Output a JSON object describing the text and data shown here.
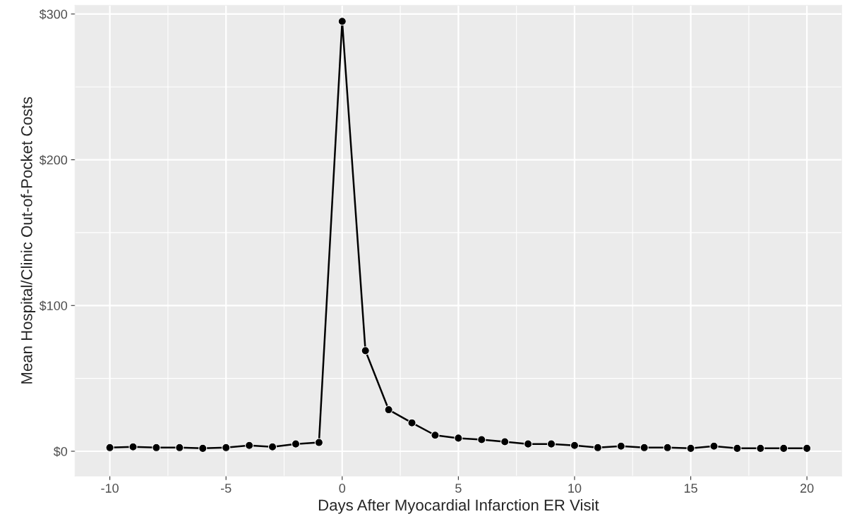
{
  "chart_data": {
    "type": "line",
    "xlabel": "Days After Myocardial Infarction ER Visit",
    "ylabel": "Mean Hospital/Clinic Out-of-Pocket Costs",
    "x": [
      -10,
      -9,
      -8,
      -7,
      -6,
      -5,
      -4,
      -3,
      -2,
      -1,
      0,
      1,
      2,
      3,
      4,
      5,
      6,
      7,
      8,
      9,
      10,
      11,
      12,
      13,
      14,
      15,
      16,
      17,
      18,
      19,
      20
    ],
    "series": [
      {
        "color": "#000000",
        "values": [
          2.5,
          3,
          2.5,
          2.5,
          2,
          2.5,
          4,
          3,
          5,
          6,
          295,
          69,
          28.5,
          19.5,
          11,
          9,
          8,
          6.5,
          5,
          5,
          4,
          2.5,
          3.5,
          2.5,
          2.5,
          2,
          3.5,
          2,
          2,
          2,
          2
        ]
      }
    ],
    "xlim": [
      -11.5,
      21.5
    ],
    "xticks": [
      -10,
      -5,
      0,
      5,
      10,
      15,
      20
    ],
    "ylim": [
      -17,
      306
    ],
    "yticks": [
      {
        "value": 0,
        "label": "$0"
      },
      {
        "value": 100,
        "label": "$100"
      },
      {
        "value": 200,
        "label": "$200"
      },
      {
        "value": 300,
        "label": "$300"
      }
    ],
    "grid": true,
    "marker": "circle",
    "line_style": "solid",
    "legend": false
  }
}
